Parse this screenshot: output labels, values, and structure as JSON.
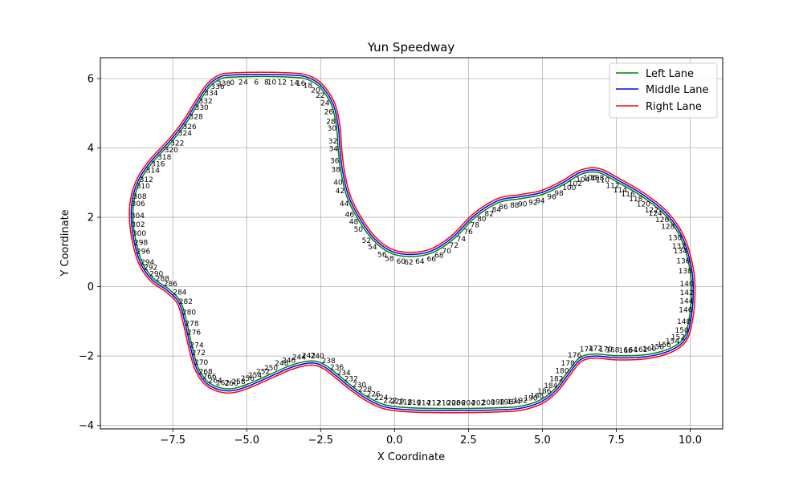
{
  "chart_data": {
    "type": "line",
    "title": "Yun Speedway",
    "xlabel": "X Coordinate",
    "ylabel": "Y Coordinate",
    "xlim": [
      -9.95,
      11.1
    ],
    "ylim": [
      -4.1,
      6.6
    ],
    "xticks": [
      -7.5,
      -5.0,
      -2.5,
      0.0,
      2.5,
      5.0,
      7.5,
      10.0
    ],
    "xtick_labels": [
      "−7.5",
      "−5.0",
      "−2.5",
      "0.0",
      "2.5",
      "5.0",
      "7.5",
      "10.0"
    ],
    "yticks": [
      -4,
      -2,
      0,
      2,
      4,
      6
    ],
    "ytick_labels": [
      "−4",
      "−2",
      "0",
      "2",
      "4",
      "6"
    ],
    "grid": true,
    "legend": {
      "placement": "top-right"
    },
    "series": [
      {
        "name": "Left Lane",
        "color": "#008000"
      },
      {
        "name": "Middle Lane",
        "color": "#0000ff"
      },
      {
        "name": "Right Lane",
        "color": "#ff0000"
      }
    ],
    "centerline": [
      [
        -5.5,
        6.1
      ],
      [
        -4.5,
        6.12
      ],
      [
        -3.5,
        6.1
      ],
      [
        -3.0,
        6.05
      ],
      [
        -2.6,
        5.88
      ],
      [
        -2.3,
        5.6
      ],
      [
        -2.05,
        5.2
      ],
      [
        -1.9,
        4.6
      ],
      [
        -1.85,
        4.0
      ],
      [
        -1.75,
        3.3
      ],
      [
        -1.55,
        2.6
      ],
      [
        -1.2,
        2.0
      ],
      [
        -0.7,
        1.4
      ],
      [
        -0.1,
        1.02
      ],
      [
        0.6,
        0.93
      ],
      [
        1.3,
        1.05
      ],
      [
        2.0,
        1.45
      ],
      [
        2.7,
        2.05
      ],
      [
        3.5,
        2.48
      ],
      [
        4.3,
        2.6
      ],
      [
        5.0,
        2.72
      ],
      [
        5.7,
        3.0
      ],
      [
        6.3,
        3.3
      ],
      [
        6.9,
        3.35
      ],
      [
        7.6,
        3.05
      ],
      [
        8.4,
        2.65
      ],
      [
        9.2,
        2.1
      ],
      [
        9.75,
        1.4
      ],
      [
        10.05,
        0.5
      ],
      [
        10.1,
        -0.3
      ],
      [
        10.0,
        -1.05
      ],
      [
        9.8,
        -1.55
      ],
      [
        9.3,
        -1.85
      ],
      [
        8.5,
        -2.02
      ],
      [
        7.5,
        -2.05
      ],
      [
        6.8,
        -2.0
      ],
      [
        6.3,
        -2.1
      ],
      [
        5.9,
        -2.5
      ],
      [
        5.5,
        -2.95
      ],
      [
        5.0,
        -3.3
      ],
      [
        4.3,
        -3.5
      ],
      [
        3.5,
        -3.55
      ],
      [
        2.5,
        -3.57
      ],
      [
        1.5,
        -3.57
      ],
      [
        0.5,
        -3.55
      ],
      [
        -0.3,
        -3.47
      ],
      [
        -0.9,
        -3.25
      ],
      [
        -1.5,
        -2.9
      ],
      [
        -2.0,
        -2.55
      ],
      [
        -2.4,
        -2.3
      ],
      [
        -2.8,
        -2.2
      ],
      [
        -3.4,
        -2.3
      ],
      [
        -4.1,
        -2.55
      ],
      [
        -4.9,
        -2.85
      ],
      [
        -5.5,
        -3.0
      ],
      [
        -6.0,
        -2.95
      ],
      [
        -6.4,
        -2.75
      ],
      [
        -6.7,
        -2.35
      ],
      [
        -6.9,
        -1.75
      ],
      [
        -7.1,
        -1.0
      ],
      [
        -7.3,
        -0.45
      ],
      [
        -7.7,
        -0.1
      ],
      [
        -8.2,
        0.2
      ],
      [
        -8.6,
        0.7
      ],
      [
        -8.85,
        1.5
      ],
      [
        -8.9,
        2.3
      ],
      [
        -8.7,
        3.0
      ],
      [
        -8.25,
        3.6
      ],
      [
        -7.6,
        4.2
      ],
      [
        -7.1,
        4.75
      ],
      [
        -6.7,
        5.3
      ],
      [
        -6.3,
        5.8
      ],
      [
        -5.9,
        6.05
      ]
    ],
    "lane_offset": 0.06,
    "point_labels": {
      "count": 340,
      "offset": 0.22,
      "every": 2
    }
  }
}
